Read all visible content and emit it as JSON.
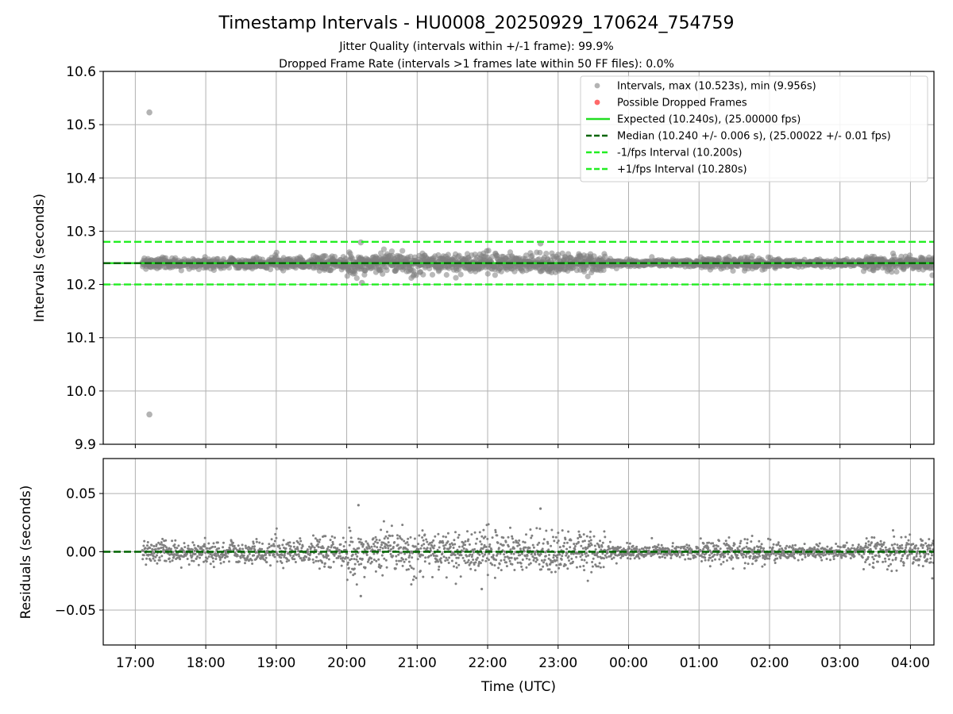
{
  "figure": {
    "title": "Timestamp Intervals - HU0008_20250929_170624_754759",
    "subtitle_line1": "Jitter Quality (intervals within +/-1 frame): 99.9%",
    "subtitle_line2": "Dropped Frame Rate (intervals >1 frames late within 50 FF files): 0.0%"
  },
  "colors": {
    "intervals": "#808080",
    "dropped": "#ff4444",
    "expected": "#22dd22",
    "median": "#006400",
    "fps_bounds": "#22ee22",
    "grid": "#b0b0b0"
  },
  "chart_data": [
    {
      "type": "scatter",
      "ylabel": "Intervals (seconds)",
      "xlabel": "",
      "ylim": [
        9.9,
        10.6
      ],
      "yticks": [
        "9.9",
        "10.0",
        "10.1",
        "10.2",
        "10.3",
        "10.4",
        "10.5",
        "10.6"
      ],
      "grid": true,
      "legend_placement": "top-right",
      "x_start": "17:06",
      "x_end": "04:20",
      "reference_lines": {
        "expected": 10.24,
        "median": 10.24,
        "lower_fps": 10.2,
        "upper_fps": 10.28
      },
      "outliers": [
        {
          "time": "17:12",
          "value": 10.523
        },
        {
          "time": "17:12",
          "value": 9.956
        },
        {
          "time": "20:12",
          "value": 10.279
        },
        {
          "time": "22:45",
          "value": 10.277
        },
        {
          "time": "20:13",
          "value": 10.203
        }
      ],
      "legend": [
        {
          "label": "Intervals, max (10.523s), min (9.956s)",
          "style": "gray-dot"
        },
        {
          "label": "Possible Dropped Frames",
          "style": "red-dot"
        },
        {
          "label": "Expected (10.240s), (25.00000 fps)",
          "style": "solid-bright"
        },
        {
          "label": "Median (10.240 +/- 0.006 s), (25.00022 +/- 0.01 fps)",
          "style": "dashed-dark"
        },
        {
          "label": "-1/fps Interval (10.200s)",
          "style": "dashed-bright"
        },
        {
          "label": "+1/fps Interval (10.280s)",
          "style": "dashed-bright"
        }
      ]
    },
    {
      "type": "scatter",
      "ylabel": "Residuals (seconds)",
      "xlabel": "Time (UTC)",
      "ylim": [
        -0.08,
        0.08
      ],
      "yticks": [
        "0.05",
        "0.00",
        "−0.05"
      ],
      "xticks": [
        "17:00",
        "18:00",
        "19:00",
        "20:00",
        "21:00",
        "22:00",
        "23:00",
        "00:00",
        "01:00",
        "02:00",
        "03:00",
        "04:00"
      ],
      "grid": true,
      "reference_line": 0.0,
      "outliers": [
        {
          "time": "20:10",
          "value": 0.04
        },
        {
          "time": "20:12",
          "value": -0.038
        },
        {
          "time": "22:45",
          "value": 0.037
        },
        {
          "time": "21:55",
          "value": -0.032
        }
      ],
      "jitter_profile": [
        {
          "from": "17:06",
          "to": "19:30",
          "stdev": 0.005
        },
        {
          "from": "19:30",
          "to": "20:00",
          "stdev": 0.006
        },
        {
          "from": "20:00",
          "to": "22:30",
          "stdev": 0.009
        },
        {
          "from": "22:30",
          "to": "23:40",
          "stdev": 0.008
        },
        {
          "from": "23:40",
          "to": "01:00",
          "stdev": 0.003
        },
        {
          "from": "01:00",
          "to": "02:10",
          "stdev": 0.005
        },
        {
          "from": "02:10",
          "to": "03:20",
          "stdev": 0.003
        },
        {
          "from": "03:20",
          "to": "04:20",
          "stdev": 0.007
        }
      ]
    }
  ]
}
